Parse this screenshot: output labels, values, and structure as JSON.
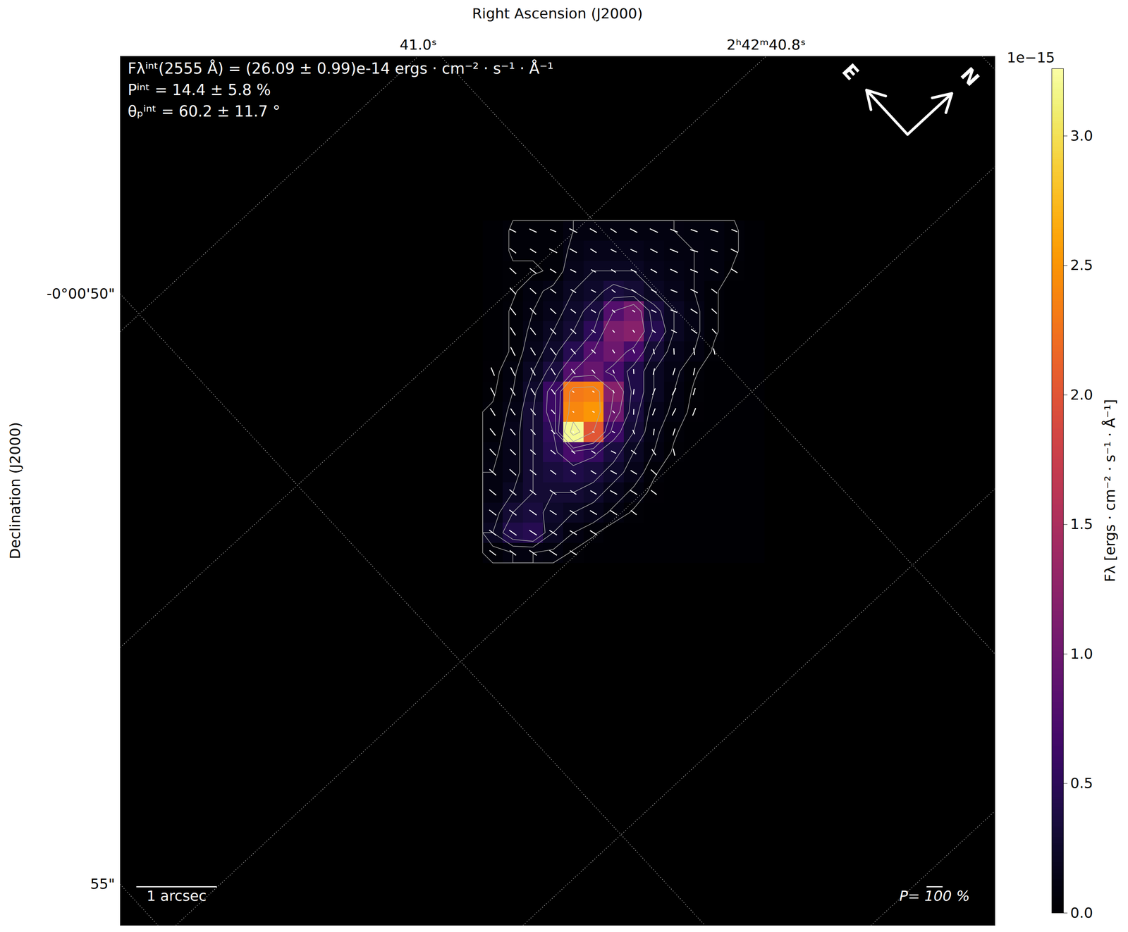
{
  "chart_data": {
    "type": "polarization_map",
    "annotations": [
      "Fλⁱⁿᵗ(2555 Å) = (26.09 ± 0.99)e-14 ergs · cm⁻² · s⁻¹ · Å⁻¹",
      "Pⁱⁿᵗ = 14.4 ± 5.8 %",
      "θₚⁱⁿᵗ = 60.2 ± 11.7 °"
    ],
    "x_label": "Right Ascension (J2000)",
    "y_label": "Declination (J2000)",
    "xlim": [
      0,
      10.86
    ],
    "ylim": [
      0,
      10.79
    ],
    "tick_labels": false,
    "grid": true,
    "ra_grid": [
      {
        "label": "41.0ˢ",
        "x": [
          0,
          3.7
        ],
        "y": [
          7.37,
          10.79
        ]
      },
      {
        "label": "2ʰ42ᵐ40.8ˢ",
        "x": [
          0,
          8.02
        ],
        "y": [
          3.45,
          10.79
        ]
      },
      {
        "label": null,
        "x": [
          0.69,
          10.86
        ],
        "y": [
          0,
          9.42
        ]
      },
      {
        "label": null,
        "x": [
          5.0,
          10.86
        ],
        "y": [
          0,
          5.42
        ]
      },
      {
        "label": null,
        "x": [
          9.32,
          10.86
        ],
        "y": [
          0,
          1.42
        ]
      }
    ],
    "dec_grid": [
      {
        "label": null,
        "x": [
          3.98,
          10.86
        ],
        "y": [
          10.79,
          3.37
        ]
      },
      {
        "label": "-0°00'50\"",
        "x": [
          0,
          7.26
        ],
        "y": [
          7.84,
          0
        ]
      },
      {
        "label": "55\"",
        "x": [
          0,
          0.47
        ],
        "y": [
          0.51,
          0
        ]
      },
      {
        "label": null,
        "x": [
          10.7,
          10.86
        ],
        "y": [
          10.79,
          10.62
        ]
      }
    ],
    "flux": {
      "x_range": [
        4.5,
        8.0
      ],
      "y_range": [
        8.75,
        4.5
      ],
      "values": [
        [
          0,
          0.05,
          0.05,
          0.05,
          0.1,
          0.1,
          0.1,
          0.1,
          0.1,
          0.1,
          0.08,
          0.08,
          0.05,
          0
        ],
        [
          0,
          0.05,
          0.05,
          0.05,
          0.12,
          0.15,
          0.15,
          0.15,
          0.12,
          0.1,
          0.1,
          0.08,
          0.05,
          0
        ],
        [
          0,
          0.03,
          0.03,
          0.05,
          0.15,
          0.2,
          0.2,
          0.2,
          0.15,
          0.12,
          0.1,
          0.08,
          0.03,
          0
        ],
        [
          0,
          0.03,
          0.08,
          0.12,
          0.2,
          0.25,
          0.35,
          0.3,
          0.2,
          0.15,
          0.1,
          0.05,
          0,
          0
        ],
        [
          0,
          0.05,
          0.1,
          0.15,
          0.25,
          0.35,
          0.8,
          1.05,
          0.35,
          0.2,
          0.12,
          0.05,
          0,
          0
        ],
        [
          0,
          0.05,
          0.12,
          0.2,
          0.3,
          0.5,
          1.1,
          1.2,
          0.45,
          0.2,
          0.12,
          0.05,
          0,
          0
        ],
        [
          0,
          0.05,
          0.15,
          0.25,
          0.45,
          0.8,
          1.0,
          0.7,
          0.3,
          0.15,
          0.1,
          0.03,
          0,
          0
        ],
        [
          0.02,
          0.08,
          0.2,
          0.35,
          0.8,
          0.95,
          0.7,
          0.4,
          0.2,
          0.12,
          0.05,
          0,
          0,
          0
        ],
        [
          0.03,
          0.1,
          0.25,
          0.6,
          2.3,
          2.35,
          1.2,
          0.4,
          0.2,
          0.1,
          0.03,
          0,
          0,
          0
        ],
        [
          0.05,
          0.12,
          0.3,
          0.6,
          2.4,
          2.5,
          1.0,
          0.35,
          0.15,
          0.08,
          0.02,
          0,
          0,
          0
        ],
        [
          0.05,
          0.15,
          0.3,
          0.5,
          3.2,
          2.0,
          0.6,
          0.3,
          0.12,
          0.05,
          0,
          0,
          0,
          0
        ],
        [
          0.08,
          0.15,
          0.3,
          0.45,
          0.7,
          0.55,
          0.35,
          0.2,
          0.1,
          0.03,
          0,
          0,
          0,
          0
        ],
        [
          0.1,
          0.15,
          0.3,
          0.35,
          0.4,
          0.35,
          0.25,
          0.15,
          0.05,
          0,
          0,
          0,
          0,
          0
        ],
        [
          0.1,
          0.2,
          0.3,
          0.3,
          0.3,
          0.25,
          0.15,
          0.08,
          0.02,
          0,
          0,
          0,
          0,
          0
        ],
        [
          0.15,
          0.3,
          0.35,
          0.25,
          0.2,
          0.15,
          0.08,
          0.03,
          0,
          0,
          0,
          0,
          0,
          0
        ],
        [
          0.2,
          0.4,
          0.45,
          0.2,
          0.1,
          0.05,
          0,
          0,
          0,
          0,
          0,
          0,
          0,
          0
        ],
        [
          0.05,
          0.1,
          0.1,
          0.08,
          0.03,
          0,
          0,
          0,
          0,
          0,
          0,
          0,
          0,
          0
        ]
      ]
    },
    "contour_levels": [
      0.04,
      0.1,
      0.2,
      0.3,
      0.5,
      0.8,
      1.2,
      2.0,
      2.8
    ],
    "polarization": {
      "P": [
        [
          null,
          45,
          50,
          40,
          55,
          50,
          45,
          50,
          55,
          50,
          45,
          50,
          40,
          null
        ],
        [
          null,
          50,
          45,
          55,
          50,
          45,
          40,
          45,
          50,
          55,
          50,
          45,
          50,
          null
        ],
        [
          null,
          55,
          50,
          45,
          40,
          35,
          35,
          40,
          45,
          50,
          50,
          55,
          45,
          null
        ],
        [
          null,
          55,
          50,
          45,
          40,
          35,
          30,
          35,
          40,
          45,
          50,
          45,
          null,
          null
        ],
        [
          null,
          60,
          55,
          50,
          40,
          35,
          25,
          20,
          35,
          45,
          50,
          45,
          null,
          null
        ],
        [
          null,
          60,
          55,
          50,
          45,
          35,
          20,
          20,
          30,
          40,
          45,
          40,
          null,
          null
        ],
        [
          null,
          60,
          55,
          55,
          45,
          35,
          25,
          25,
          35,
          40,
          45,
          40,
          null,
          null
        ],
        [
          55,
          60,
          55,
          50,
          40,
          30,
          25,
          30,
          40,
          45,
          45,
          null,
          null,
          null
        ],
        [
          55,
          55,
          50,
          40,
          15,
          15,
          20,
          35,
          45,
          50,
          45,
          null,
          null,
          null
        ],
        [
          55,
          50,
          50,
          35,
          12,
          15,
          20,
          35,
          45,
          50,
          50,
          null,
          null,
          null
        ],
        [
          55,
          50,
          45,
          35,
          10,
          15,
          20,
          30,
          40,
          45,
          null,
          null,
          null,
          null
        ],
        [
          55,
          50,
          45,
          40,
          30,
          30,
          35,
          40,
          45,
          45,
          null,
          null,
          null,
          null
        ],
        [
          55,
          55,
          50,
          45,
          40,
          40,
          45,
          45,
          50,
          null,
          null,
          null,
          null,
          null
        ],
        [
          55,
          55,
          50,
          50,
          45,
          45,
          50,
          50,
          45,
          null,
          null,
          null,
          null,
          null
        ],
        [
          55,
          55,
          55,
          50,
          50,
          50,
          50,
          45,
          null,
          null,
          null,
          null,
          null,
          null
        ],
        [
          55,
          55,
          55,
          55,
          50,
          50,
          null,
          null,
          null,
          null,
          null,
          null,
          null,
          null
        ],
        [
          50,
          50,
          55,
          55,
          50,
          null,
          null,
          null,
          null,
          null,
          null,
          null,
          null,
          null
        ]
      ],
      "theta": [
        [
          null,
          110,
          112,
          115,
          110,
          108,
          105,
          110,
          112,
          115,
          118,
          120,
          115,
          null
        ],
        [
          null,
          100,
          105,
          110,
          108,
          105,
          110,
          112,
          110,
          115,
          120,
          118,
          110,
          null
        ],
        [
          null,
          95,
          100,
          105,
          110,
          108,
          105,
          110,
          108,
          112,
          115,
          110,
          105,
          null
        ],
        [
          null,
          90,
          95,
          100,
          105,
          110,
          100,
          105,
          110,
          115,
          110,
          100,
          null,
          null
        ],
        [
          null,
          85,
          90,
          95,
          100,
          105,
          95,
          100,
          110,
          115,
          105,
          95,
          null,
          null
        ],
        [
          null,
          80,
          85,
          90,
          95,
          100,
          90,
          85,
          100,
          110,
          100,
          90,
          null,
          null
        ],
        [
          null,
          75,
          80,
          85,
          90,
          95,
          80,
          70,
          60,
          50,
          55,
          60,
          null,
          null
        ],
        [
          70,
          75,
          78,
          80,
          85,
          90,
          70,
          50,
          35,
          30,
          35,
          null,
          null,
          null
        ],
        [
          75,
          78,
          80,
          85,
          95,
          100,
          75,
          40,
          25,
          20,
          30,
          null,
          null,
          null
        ],
        [
          80,
          82,
          85,
          90,
          100,
          110,
          90,
          45,
          25,
          20,
          25,
          null,
          null,
          null
        ],
        [
          85,
          85,
          88,
          92,
          105,
          115,
          110,
          70,
          40,
          30,
          null,
          null,
          null,
          null
        ],
        [
          90,
          92,
          95,
          98,
          100,
          105,
          110,
          100,
          80,
          60,
          null,
          null,
          null,
          null
        ],
        [
          95,
          95,
          98,
          100,
          102,
          105,
          108,
          105,
          95,
          null,
          null,
          null,
          null,
          null
        ],
        [
          98,
          98,
          100,
          102,
          104,
          106,
          108,
          105,
          100,
          null,
          null,
          null,
          null,
          null
        ],
        [
          100,
          100,
          102,
          104,
          105,
          106,
          105,
          100,
          null,
          null,
          null,
          null,
          null,
          null
        ],
        [
          100,
          102,
          104,
          105,
          106,
          105,
          null,
          null,
          null,
          null,
          null,
          null,
          null,
          null
        ],
        [
          100,
          100,
          102,
          104,
          105,
          null,
          null,
          null,
          null,
          null,
          null,
          null,
          null,
          null
        ]
      ]
    },
    "compass": [
      "E",
      "N"
    ],
    "scale_bar": {
      "value": 1,
      "label": "1 arcsec"
    },
    "p_scale_bar": {
      "value": 100,
      "label": "P= 100 %"
    },
    "colorbar": {
      "label": "Fλ [ergs · cm⁻² · s⁻¹ · Å⁻¹]",
      "range": [
        0,
        3.26
      ],
      "ticks": [
        {
          "value": 0,
          "label": "0.0"
        },
        0.5,
        {
          "value": 1,
          "label": "1.0"
        },
        1.5,
        {
          "value": 2,
          "label": "2.0"
        },
        2.5,
        {
          "value": 3,
          "label": "3.0"
        }
      ],
      "offset_label": "1e−15",
      "color": "inferno"
    }
  }
}
